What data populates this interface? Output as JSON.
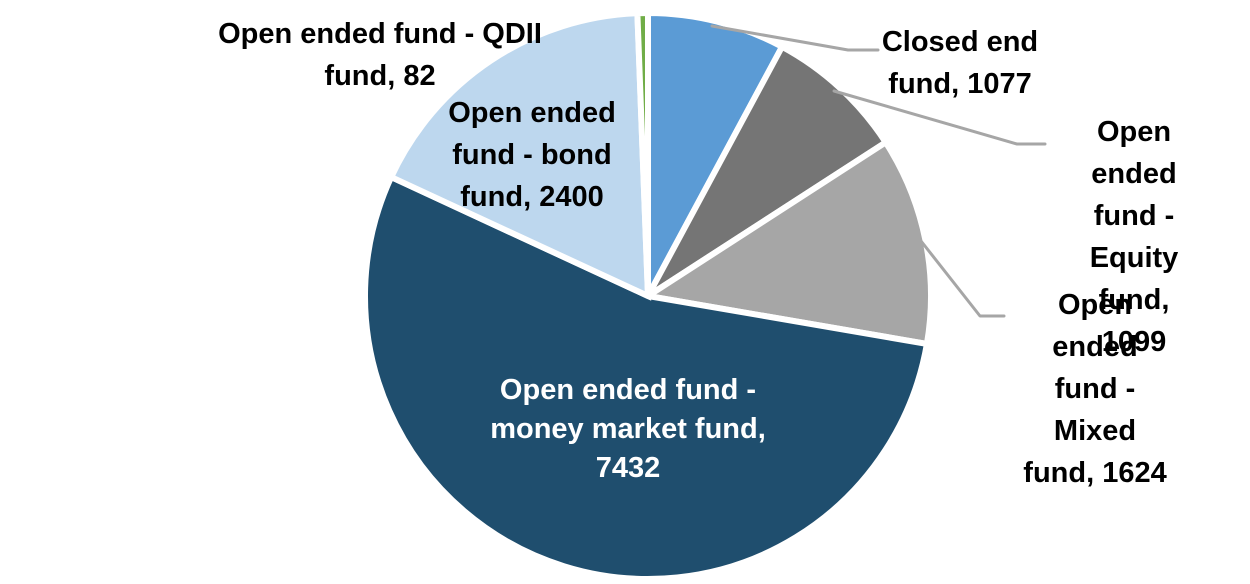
{
  "figure": {
    "background": "#FFFFFF",
    "description": "Pie chart of number of funds by fund type"
  },
  "chart_data": {
    "type": "pie",
    "title": "",
    "legend_position": "none",
    "data_label_format": "category, value",
    "direction": "clockwise",
    "start_angle_deg": 0,
    "grid": false,
    "leader_line_color": "#A6A6A6",
    "outside_label_color": "#000000",
    "inside_label_color": "#FFFFFF",
    "segments": [
      {
        "id": "closed-end-fund",
        "label": "Closed end fund",
        "value": 1077,
        "color": "#5B9BD5",
        "label_lines": [
          "Closed end",
          "fund, 1077"
        ],
        "label_placement": "outside-right",
        "leader_line": true
      },
      {
        "id": "open-ended-fund-equity-fund",
        "label": "Open ended fund - Equity fund",
        "value": 1099,
        "color": "#757575",
        "label_lines": [
          "Open ended",
          "fund - Equity",
          "fund, 1099"
        ],
        "label_placement": "outside-right",
        "leader_line": true
      },
      {
        "id": "open-ended-fund-mixed-fund",
        "label": "Open ended fund - Mixed fund",
        "value": 1624,
        "color": "#A6A6A6",
        "label_lines": [
          "Open ended",
          "fund - Mixed",
          "fund, 1624"
        ],
        "label_placement": "outside-right",
        "leader_line": true
      },
      {
        "id": "open-ended-fund-money-market-fund",
        "label": "Open ended fund - money market fund",
        "value": 7432,
        "color": "#1F4E6E",
        "label_lines": [
          "Open ended fund -",
          "money market fund,",
          "7432"
        ],
        "label_placement": "inside",
        "leader_line": false
      },
      {
        "id": "open-ended-fund-bond-fund",
        "label": "Open ended fund - bond fund",
        "value": 2400,
        "color": "#BDD7EE",
        "label_lines": [
          "Open ended",
          "fund - bond",
          "fund, 2400"
        ],
        "label_placement": "outside-left",
        "leader_line": false
      },
      {
        "id": "open-ended-fund-qdii-fund",
        "label": "Open ended fund - QDII fund",
        "value": 82,
        "color": "#70AD47",
        "label_lines": [
          "Open ended fund - QDII",
          "fund, 82"
        ],
        "label_placement": "outside-top-left",
        "leader_line": false
      }
    ]
  }
}
